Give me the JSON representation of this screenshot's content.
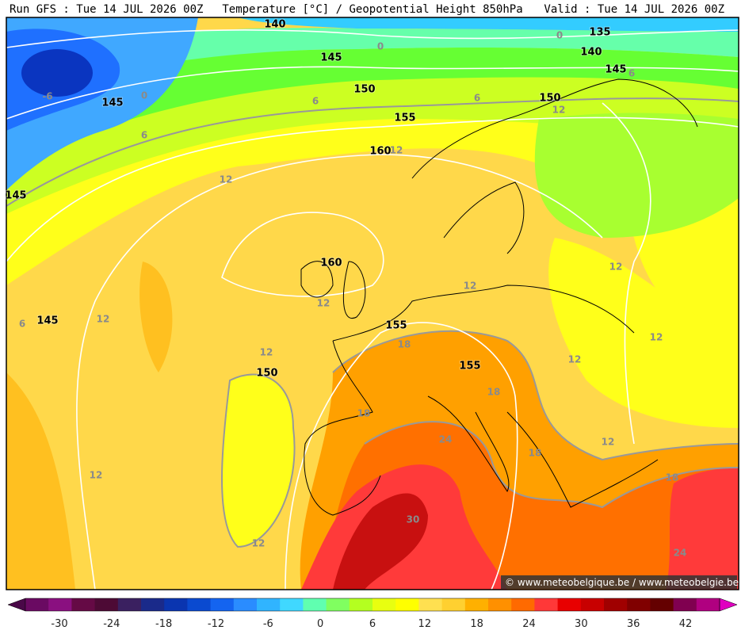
{
  "header": {
    "run": "Run GFS : Tue 14 JUL 2026 00Z",
    "title": "Temperature [°C] / Geopotential Height 850hPa",
    "valid": "Valid : Tue 14 JUL 2026 00Z"
  },
  "contour_labels": [
    "140",
    "0",
    "135",
    "0",
    "140",
    "145",
    "145",
    "6",
    "-6",
    "145",
    "0",
    "150",
    "6",
    "6",
    "150",
    "12",
    "155",
    "6",
    "160",
    "12",
    "12",
    "145",
    "160",
    "12",
    "12",
    "12",
    "6",
    "145",
    "12",
    "155",
    "12",
    "18",
    "12",
    "12",
    "155",
    "150",
    "18",
    "18",
    "24",
    "12",
    "18",
    "12",
    "18",
    "30",
    "12",
    "24"
  ],
  "colorbar": {
    "ticks": [
      -30,
      -24,
      -18,
      -12,
      -6,
      0,
      6,
      12,
      18,
      24,
      30,
      36,
      42
    ],
    "colors": [
      "#4a0848",
      "#6a0a62",
      "#8a1080",
      "#650a45",
      "#4d0a35",
      "#3a2060",
      "#1a2a8a",
      "#0a35b0",
      "#0a4ad0",
      "#1464f0",
      "#2a8cff",
      "#30b4ff",
      "#40d8ff",
      "#60ffb0",
      "#80ff60",
      "#b4ff20",
      "#e8ff10",
      "#ffff00",
      "#ffe050",
      "#ffd030",
      "#ffb000",
      "#ff9000",
      "#ff6a00",
      "#ff3838",
      "#e80000",
      "#c80000",
      "#a00000",
      "#800000",
      "#640000",
      "#800050",
      "#b00080",
      "#e000c0"
    ]
  },
  "watermark": "© www.meteobelgique.be / www.meteobelgie.be"
}
